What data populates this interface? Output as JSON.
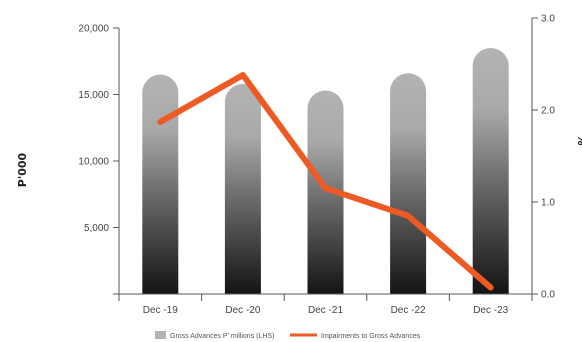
{
  "chart_data": {
    "type": "bar",
    "title": "",
    "categories": [
      "Dec -19",
      "Dec -20",
      "Dec -21",
      "Dec -22",
      "Dec -23"
    ],
    "series": [
      {
        "name": "Gross Advances P' millions (LHS)",
        "type": "bar",
        "axis": "left",
        "values": [
          16500,
          15800,
          15300,
          16600,
          18500
        ],
        "color": "#b3b3b3"
      },
      {
        "name": "Impairments to Gross Advances",
        "type": "line",
        "axis": "right",
        "values": [
          1.87,
          2.38,
          1.15,
          0.85,
          0.07
        ],
        "color": "#ee5a24"
      }
    ],
    "y_left": {
      "label": "P'000",
      "lim": [
        0,
        20000
      ],
      "ticks": [
        5000,
        10000,
        15000,
        20000
      ],
      "tick_labels": [
        "5,000",
        "10,000",
        "15,000",
        "20,000"
      ]
    },
    "y_right": {
      "label": "%",
      "lim": [
        0,
        3.0
      ],
      "ticks": [
        0,
        1,
        2,
        3
      ],
      "tick_labels": [
        "0.0",
        "1.0",
        "2.0",
        "3.0"
      ]
    },
    "grid": false,
    "legend": "bottom-center"
  }
}
